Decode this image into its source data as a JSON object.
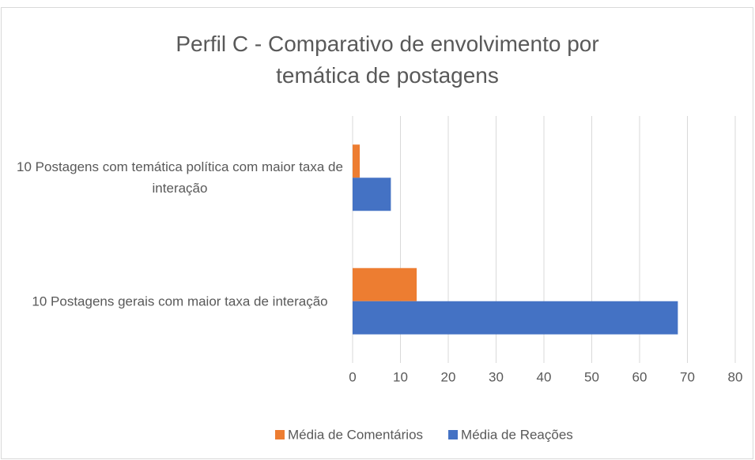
{
  "chart_data": {
    "type": "hbar",
    "title": "Perfil C - Comparativo de envolvimento por temática de postagens",
    "categories": [
      "10 Postagens  com temática política com maior taxa de interação",
      "10 Postagens gerais com maior taxa de interação"
    ],
    "series": [
      {
        "name": "Média de Comentários",
        "color": "#ed7d31",
        "values": [
          1.5,
          13.4
        ]
      },
      {
        "name": "Média de Reações",
        "color": "#4472c4",
        "values": [
          8,
          68
        ]
      }
    ],
    "xlim": [
      0,
      80
    ],
    "xticks": [
      0,
      10,
      20,
      30,
      40,
      50,
      60,
      70,
      80
    ],
    "grid": true,
    "legend": "bottom"
  }
}
